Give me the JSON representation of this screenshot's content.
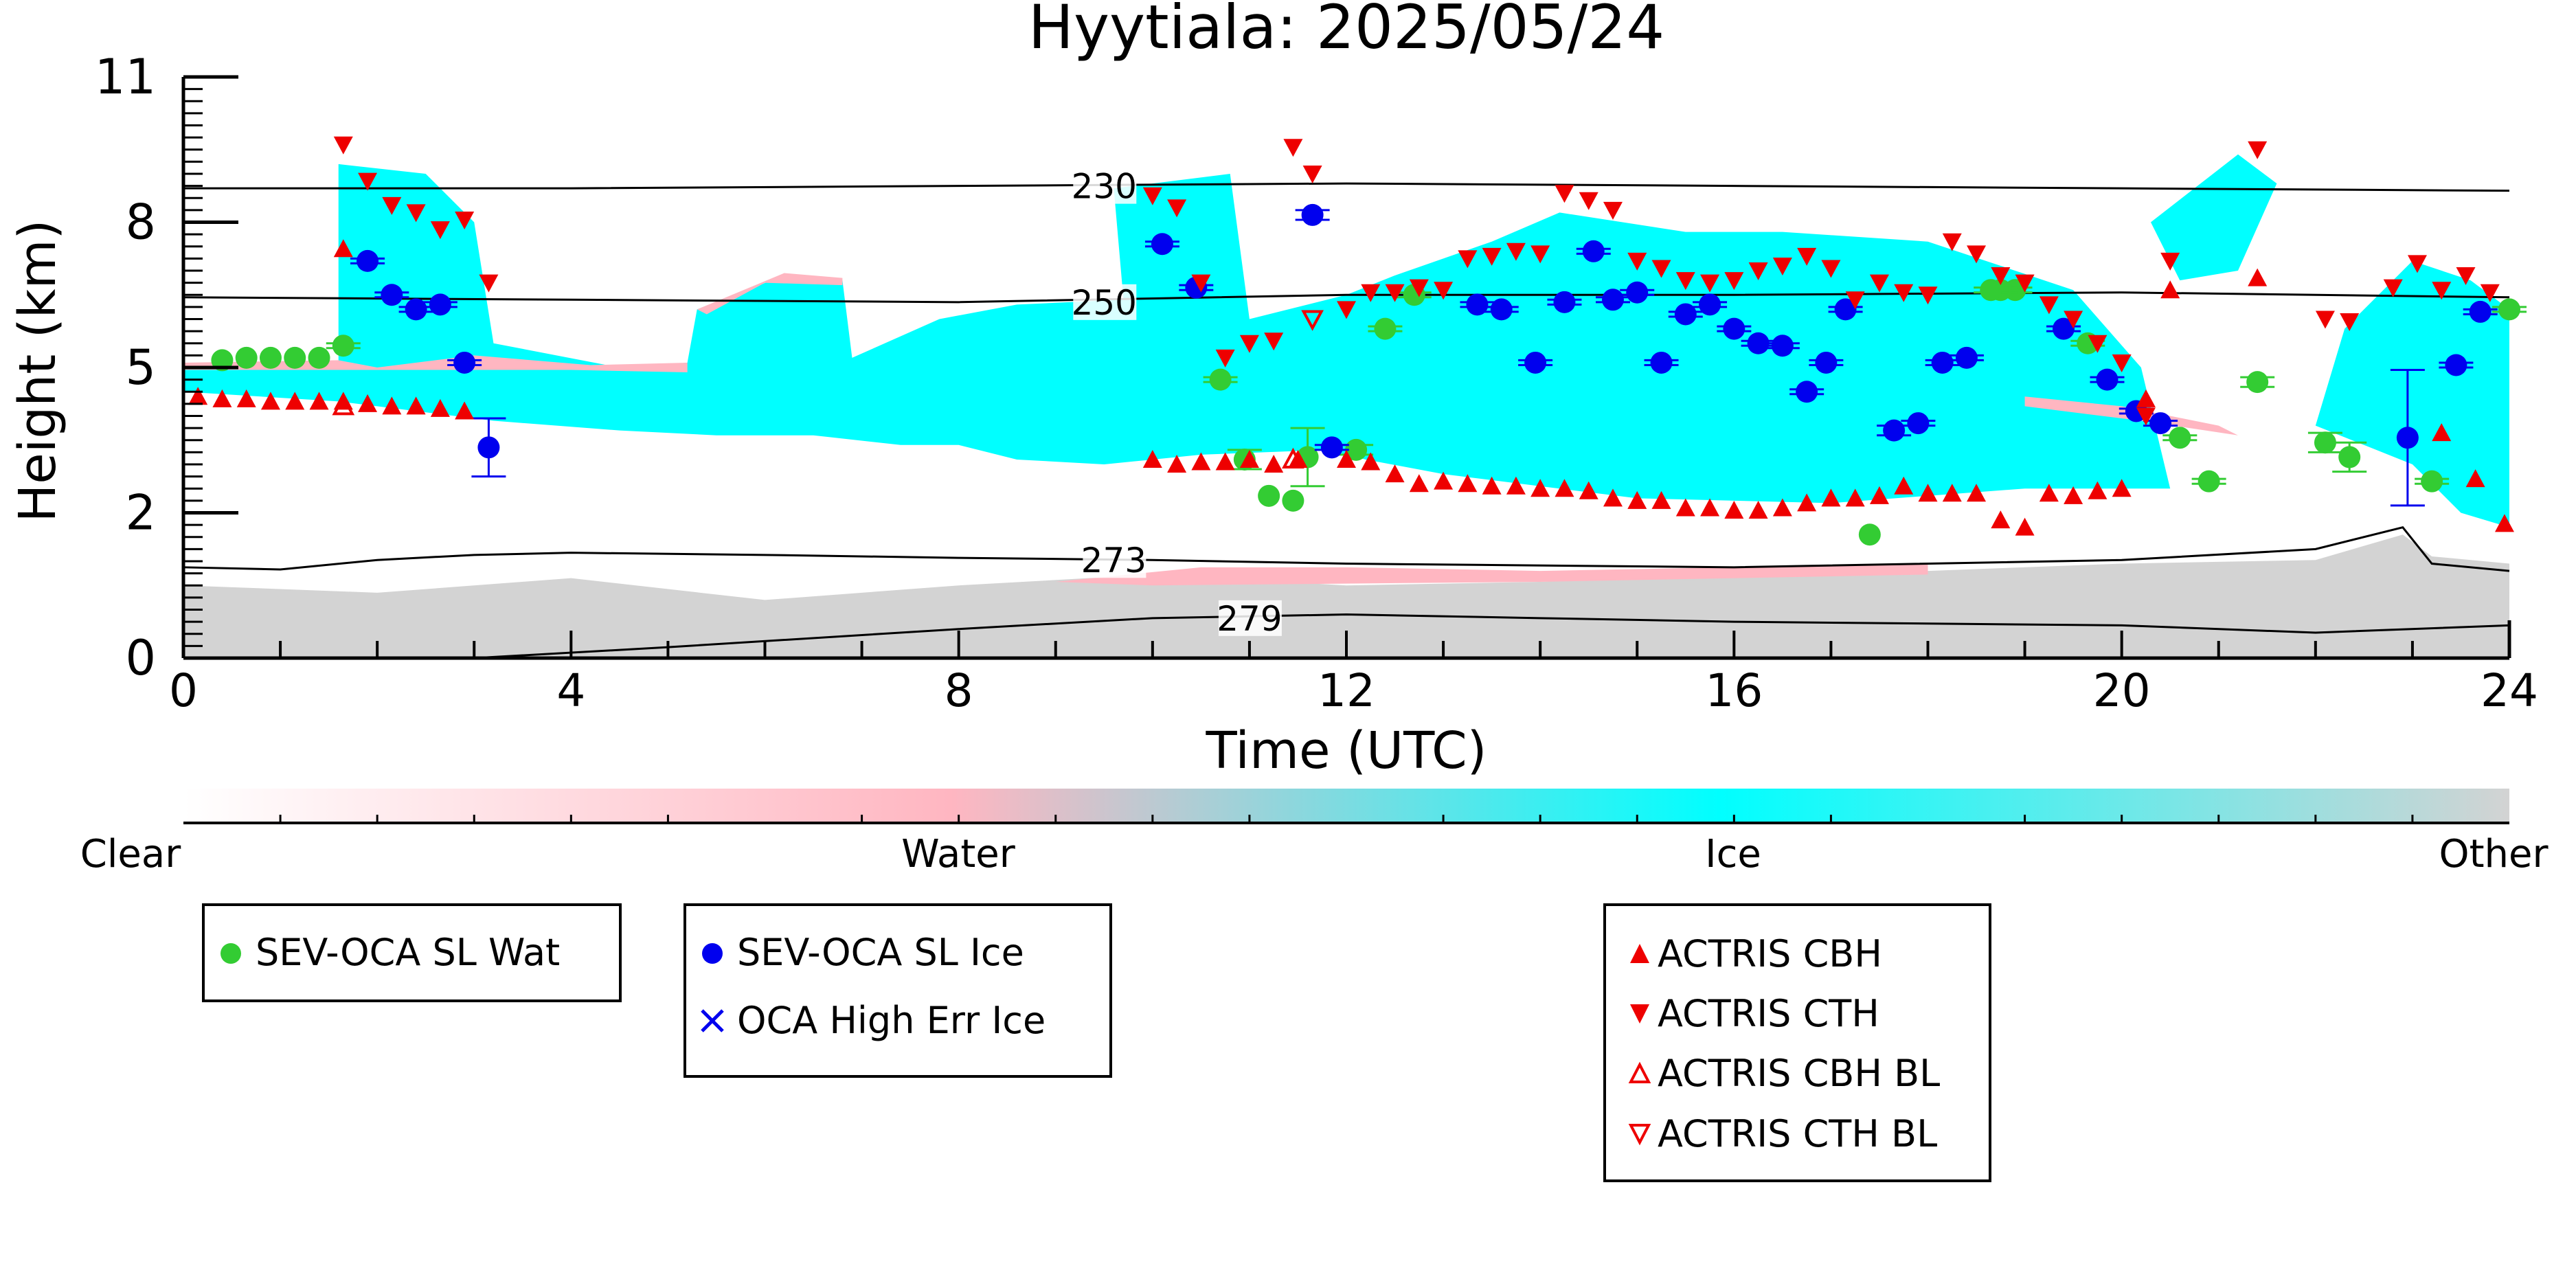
{
  "chart_data": {
    "type": "scatter",
    "title": "Hyytiala: 2025/05/24",
    "xlabel": "Time (UTC)",
    "ylabel": "Height (km)",
    "xlim": [
      0,
      24
    ],
    "ylim": [
      0,
      11
    ],
    "x_ticks": [
      0,
      4,
      8,
      12,
      16,
      20,
      24
    ],
    "y_ticks": [
      0,
      2,
      5,
      8,
      11
    ],
    "y_tick_positions": [
      0,
      1.5,
      3,
      4.5,
      6
    ],
    "grid": false,
    "note_y_axis": "tick labels 0,2,5,8,11 are evenly spaced (non-linear height axis); point heights are given in the printed label units",
    "background_classification": {
      "colorbar_labels": [
        "Clear",
        "Water",
        "Ice",
        "Other"
      ],
      "colors": {
        "clear": "#ffffff",
        "water": "#ffb6c1",
        "ice": "#00ffff",
        "other": "#d3d3d3"
      }
    },
    "isotherms": [
      {
        "label": "230",
        "x": [
          0,
          4,
          8,
          12,
          16,
          20,
          24
        ],
        "y": [
          8.7,
          8.7,
          8.75,
          8.8,
          8.75,
          8.7,
          8.65
        ]
      },
      {
        "label": "250",
        "x": [
          0,
          4,
          8,
          12,
          16,
          20,
          24
        ],
        "y": [
          6.45,
          6.4,
          6.35,
          6.5,
          6.5,
          6.55,
          6.45
        ]
      },
      {
        "label": "273",
        "x": [
          0,
          1,
          2,
          3,
          4,
          6,
          8,
          10,
          12,
          16,
          20,
          22,
          22.9,
          23.2,
          24
        ],
        "y": [
          1.25,
          1.22,
          1.35,
          1.42,
          1.45,
          1.42,
          1.38,
          1.35,
          1.3,
          1.25,
          1.35,
          1.5,
          1.8,
          1.3,
          1.2
        ]
      },
      {
        "label": "279",
        "x": [
          0,
          3,
          5,
          8,
          10,
          12,
          14,
          16,
          20,
          22,
          24
        ],
        "y": [
          0,
          0.0,
          0.15,
          0.4,
          0.55,
          0.6,
          0.55,
          0.5,
          0.45,
          0.35,
          0.45
        ]
      }
    ],
    "series": [
      {
        "name": "SEV-OCA SL Wat",
        "color": "#33cc33",
        "marker": "circle",
        "x": [
          0.4,
          0.65,
          0.9,
          1.15,
          1.4,
          1.65,
          10.7,
          10.95,
          11.2,
          11.45,
          11.6,
          12.1,
          12.4,
          17.4,
          20.6,
          20.9,
          21.4,
          22.1,
          22.35,
          23.2,
          24.0,
          19.65,
          18.9,
          18.75,
          18.65,
          12.7
        ],
        "y": [
          5.15,
          5.2,
          5.2,
          5.2,
          5.2,
          5.45,
          4.75,
          3.1,
          2.35,
          2.25,
          3.15,
          3.3,
          5.8,
          1.7,
          3.55,
          2.65,
          4.7,
          3.45,
          3.15,
          2.65,
          6.2,
          5.5,
          6.6,
          6.6,
          6.6,
          6.5
        ],
        "err": [
          0,
          0,
          0,
          0,
          0,
          0.05,
          0.05,
          0.2,
          0,
          0,
          0.6,
          0.1,
          0.05,
          0,
          0.05,
          0.05,
          0.1,
          0.2,
          0.3,
          0.05,
          0.05,
          0.05,
          0.05,
          0.05,
          0.05,
          0.05
        ]
      },
      {
        "name": "SEV-OCA SL Ice",
        "color": "#0000ee",
        "marker": "circle",
        "x": [
          1.9,
          2.15,
          2.4,
          2.65,
          2.9,
          3.15,
          10.1,
          10.45,
          11.65,
          11.85,
          13.35,
          13.6,
          13.95,
          14.25,
          14.55,
          14.75,
          15.0,
          15.25,
          15.5,
          15.75,
          16.0,
          16.25,
          16.5,
          16.75,
          16.95,
          17.15,
          17.65,
          17.9,
          18.15,
          18.4,
          19.4,
          19.85,
          20.15,
          20.4,
          22.95,
          23.45,
          23.7
        ],
        "y": [
          7.2,
          6.5,
          6.2,
          6.3,
          5.1,
          3.35,
          7.55,
          6.65,
          8.15,
          3.35,
          6.3,
          6.2,
          5.1,
          6.35,
          7.4,
          6.4,
          6.55,
          5.1,
          6.1,
          6.3,
          5.8,
          5.5,
          5.45,
          4.5,
          5.1,
          6.2,
          3.7,
          3.85,
          5.1,
          5.2,
          5.8,
          4.75,
          4.1,
          3.85,
          3.55,
          5.05,
          6.15
        ],
        "err": [
          0.05,
          0.05,
          0.05,
          0.05,
          0.05,
          0.6,
          0.05,
          0.05,
          0.1,
          0.05,
          0.05,
          0.05,
          0.05,
          0.05,
          0.05,
          0.05,
          0.05,
          0.05,
          0.05,
          0.05,
          0.05,
          0.05,
          0.05,
          0.05,
          0.05,
          0.05,
          0.1,
          0.05,
          0.05,
          0.05,
          0.05,
          0.05,
          0.05,
          0.05,
          1.4,
          0.05,
          0.05
        ]
      },
      {
        "name": "OCA High Err Ice",
        "color": "#0000ee",
        "marker": "x",
        "x": [],
        "y": []
      },
      {
        "name": "ACTRIS CBH",
        "color": "#ee0000",
        "marker": "triangle-up",
        "x": [
          0.15,
          0.4,
          0.65,
          0.9,
          1.15,
          1.4,
          1.65,
          1.9,
          2.15,
          2.4,
          2.65,
          2.9,
          10.0,
          10.25,
          10.5,
          10.75,
          11.0,
          11.25,
          11.5,
          12.0,
          12.25,
          12.5,
          12.75,
          13.0,
          13.25,
          13.5,
          13.75,
          14.0,
          14.25,
          14.5,
          14.75,
          15.0,
          15.25,
          15.5,
          15.75,
          16.0,
          16.25,
          16.5,
          16.75,
          17.0,
          17.25,
          17.5,
          17.75,
          18.0,
          18.25,
          18.5,
          18.75,
          19.0,
          19.25,
          19.5,
          19.75,
          20.0,
          20.25,
          20.5,
          21.4,
          23.3,
          23.65,
          23.95,
          1.65
        ],
        "y": [
          4.4,
          4.35,
          4.35,
          4.3,
          4.3,
          4.3,
          4.3,
          4.25,
          4.2,
          4.2,
          4.15,
          4.1,
          3.1,
          3.0,
          3.05,
          3.05,
          3.1,
          3.0,
          3.1,
          3.1,
          3.05,
          2.8,
          2.6,
          2.65,
          2.6,
          2.55,
          2.55,
          2.5,
          2.5,
          2.45,
          2.3,
          2.25,
          2.25,
          2.1,
          2.1,
          2.05,
          2.05,
          2.1,
          2.2,
          2.3,
          2.3,
          2.35,
          2.55,
          2.4,
          2.4,
          2.4,
          1.9,
          1.8,
          2.4,
          2.35,
          2.45,
          2.5,
          4.35,
          6.6,
          6.85,
          3.65,
          2.7,
          1.85,
          7.45
        ],
        "err": []
      },
      {
        "name": "ACTRIS CTH",
        "color": "#ee0000",
        "marker": "triangle-down",
        "x": [
          1.65,
          1.9,
          2.15,
          2.4,
          2.65,
          2.9,
          3.15,
          10.0,
          10.25,
          10.5,
          10.75,
          11.0,
          11.25,
          11.45,
          11.65,
          12.0,
          12.25,
          12.5,
          12.75,
          13.0,
          13.25,
          13.5,
          13.75,
          14.0,
          14.25,
          14.5,
          14.75,
          15.0,
          15.25,
          15.5,
          15.75,
          16.0,
          16.25,
          16.5,
          16.75,
          17.0,
          17.25,
          17.5,
          17.75,
          18.0,
          18.25,
          18.5,
          18.75,
          19.0,
          19.25,
          19.5,
          19.75,
          20.0,
          20.25,
          20.5,
          21.4,
          22.1,
          22.35,
          22.8,
          23.05,
          23.3,
          23.55,
          23.8
        ],
        "y": [
          9.6,
          8.85,
          8.35,
          8.2,
          7.85,
          8.05,
          6.75,
          8.55,
          8.3,
          6.75,
          5.2,
          5.5,
          5.55,
          9.55,
          9.0,
          6.2,
          6.55,
          6.55,
          6.65,
          6.6,
          7.25,
          7.3,
          7.4,
          7.35,
          8.6,
          8.45,
          8.25,
          7.2,
          7.05,
          6.8,
          6.75,
          6.8,
          7.0,
          7.1,
          7.3,
          7.05,
          6.4,
          6.75,
          6.55,
          6.5,
          7.6,
          7.35,
          6.9,
          6.75,
          6.3,
          6.0,
          5.5,
          5.1,
          4.0,
          7.2,
          9.5,
          6.0,
          5.95,
          6.65,
          7.15,
          6.6,
          6.9,
          6.55
        ],
        "err": []
      },
      {
        "name": "ACTRIS CBH BL",
        "color": "#ee0000",
        "marker": "triangle-up-open",
        "x": [
          1.65,
          11.45
        ],
        "y": [
          4.2,
          3.1
        ],
        "err": []
      },
      {
        "name": "ACTRIS CTH BL",
        "color": "#ee0000",
        "marker": "triangle-down-open",
        "x": [
          11.65
        ],
        "y": [
          6.0
        ],
        "err": []
      }
    ],
    "legend": [
      {
        "group": "sev-wat",
        "placement": "bottom-left",
        "entries": [
          "SEV-OCA SL Wat"
        ]
      },
      {
        "group": "sev-ice",
        "placement": "bottom-center-left",
        "entries": [
          "SEV-OCA SL Ice",
          "OCA High Err Ice"
        ]
      },
      {
        "group": "actris",
        "placement": "bottom-center-right",
        "entries": [
          "ACTRIS CBH",
          "ACTRIS CTH",
          "ACTRIS CBH BL",
          "ACTRIS CTH BL"
        ]
      }
    ]
  }
}
